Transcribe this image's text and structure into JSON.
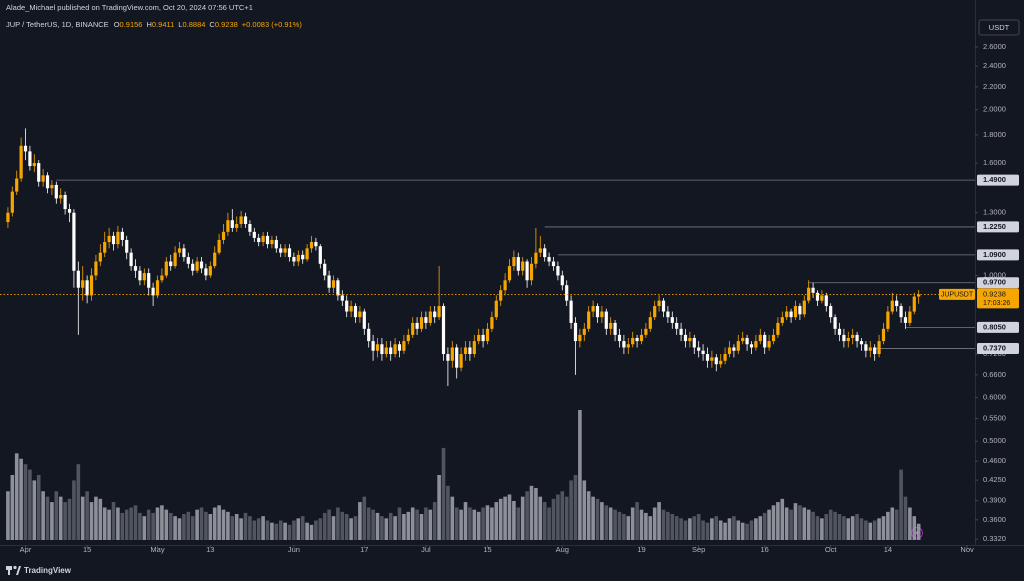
{
  "chart_data": {
    "type": "candlestick",
    "author_line": "Alade_Michael published on TradingView.com, Oct 20, 2024 07:56 UTC+1",
    "symbol": "JUP / TetherUS, 1D, BINANCE",
    "ohlc_keys": [
      "O",
      "H",
      "L",
      "C"
    ],
    "change": "+0.0083 (+0.91%)",
    "currency": "USDT",
    "ticker": "JUPUSDT",
    "countdown": "17:03:26",
    "brand": "TradingView",
    "log_scale": true,
    "grid": false,
    "colors": {
      "up": "#f7a600",
      "down": "#ffffff",
      "volume_up": "#a3a6ad",
      "volume_down": "#5d606b",
      "level": "#787b86",
      "background": "#131722"
    },
    "open": [
      1.25,
      1.3,
      1.42,
      1.5,
      1.72,
      1.68,
      1.58,
      1.6,
      1.48,
      1.52,
      1.44,
      1.46,
      1.38,
      1.4,
      1.32,
      1.3,
      1.02,
      0.95,
      0.98,
      0.92,
      1.0,
      1.06,
      1.1,
      1.15,
      1.18,
      1.14,
      1.2,
      1.16,
      1.1,
      1.04,
      1.02,
      0.98,
      1.01,
      0.95,
      0.92,
      0.98,
      1.0,
      1.06,
      1.04,
      1.1,
      1.12,
      1.08,
      1.05,
      1.02,
      1.06,
      1.03,
      1.0,
      1.04,
      1.1,
      1.16,
      1.2,
      1.26,
      1.22,
      1.24,
      1.28,
      1.24,
      1.2,
      1.17,
      1.15,
      1.18,
      1.14,
      1.16,
      1.12,
      1.1,
      1.12,
      1.08,
      1.06,
      1.09,
      1.07,
      1.12,
      1.15,
      1.13,
      1.05,
      1.0,
      0.95,
      0.98,
      0.92,
      0.9,
      0.86,
      0.88,
      0.84,
      0.86,
      0.8,
      0.76,
      0.73,
      0.75,
      0.72,
      0.74,
      0.72,
      0.75,
      0.73,
      0.76,
      0.78,
      0.82,
      0.8,
      0.84,
      0.82,
      0.86,
      0.84,
      0.88,
      0.72,
      0.7,
      0.74,
      0.68,
      0.72,
      0.74,
      0.72,
      0.76,
      0.78,
      0.76,
      0.8,
      0.84,
      0.9,
      0.94,
      0.98,
      1.04,
      1.08,
      1.02,
      1.06,
      0.98,
      1.05,
      1.1,
      1.12,
      1.08,
      1.06,
      1.04,
      1.0,
      0.96,
      0.9,
      0.82,
      0.76,
      0.78,
      0.8,
      0.86,
      0.88,
      0.84,
      0.86,
      0.8,
      0.82,
      0.78,
      0.76,
      0.74,
      0.75,
      0.77,
      0.76,
      0.78,
      0.8,
      0.84,
      0.88,
      0.9,
      0.86,
      0.84,
      0.82,
      0.8,
      0.78,
      0.76,
      0.77,
      0.74,
      0.73,
      0.72,
      0.7,
      0.71,
      0.69,
      0.7,
      0.72,
      0.74,
      0.73,
      0.76,
      0.77,
      0.75,
      0.74,
      0.76,
      0.78,
      0.74,
      0.76,
      0.78,
      0.82,
      0.84,
      0.86,
      0.84,
      0.88,
      0.85,
      0.9,
      0.95,
      0.93,
      0.9,
      0.92,
      0.88,
      0.84,
      0.8,
      0.78,
      0.76,
      0.77,
      0.78,
      0.76,
      0.75,
      0.73,
      0.74,
      0.72,
      0.76,
      0.8,
      0.86,
      0.9,
      0.88,
      0.84,
      0.82,
      0.86,
      0.9156
    ],
    "high": [
      1.33,
      1.45,
      1.55,
      1.78,
      1.85,
      1.72,
      1.66,
      1.62,
      1.56,
      1.54,
      1.49,
      1.48,
      1.44,
      1.42,
      1.35,
      1.32,
      1.06,
      1.04,
      1.0,
      1.03,
      1.09,
      1.14,
      1.2,
      1.22,
      1.2,
      1.23,
      1.22,
      1.18,
      1.12,
      1.07,
      1.04,
      1.03,
      1.03,
      0.97,
      1.0,
      1.03,
      1.08,
      1.09,
      1.13,
      1.15,
      1.14,
      1.1,
      1.07,
      1.08,
      1.08,
      1.05,
      1.06,
      1.13,
      1.19,
      1.24,
      1.3,
      1.32,
      1.28,
      1.31,
      1.3,
      1.26,
      1.22,
      1.19,
      1.2,
      1.2,
      1.18,
      1.18,
      1.14,
      1.14,
      1.14,
      1.1,
      1.11,
      1.11,
      1.14,
      1.18,
      1.17,
      1.14,
      1.07,
      1.02,
      1.0,
      0.99,
      0.94,
      0.92,
      0.9,
      0.89,
      0.88,
      0.87,
      0.82,
      0.78,
      0.77,
      0.77,
      0.76,
      0.76,
      0.77,
      0.76,
      0.78,
      0.8,
      0.84,
      0.84,
      0.86,
      0.86,
      0.88,
      0.88,
      1.04,
      0.89,
      0.74,
      0.76,
      0.75,
      0.74,
      0.76,
      0.76,
      0.78,
      0.8,
      0.8,
      0.82,
      0.86,
      0.92,
      0.96,
      1.01,
      1.07,
      1.11,
      1.1,
      1.08,
      1.07,
      1.08,
      1.22,
      1.18,
      1.14,
      1.1,
      1.08,
      1.06,
      1.02,
      0.98,
      0.92,
      0.84,
      0.8,
      0.82,
      0.88,
      0.9,
      0.89,
      0.88,
      0.87,
      0.84,
      0.83,
      0.8,
      0.78,
      0.77,
      0.79,
      0.78,
      0.8,
      0.82,
      0.86,
      0.9,
      0.92,
      0.91,
      0.88,
      0.86,
      0.84,
      0.82,
      0.8,
      0.79,
      0.78,
      0.76,
      0.75,
      0.74,
      0.73,
      0.72,
      0.72,
      0.74,
      0.76,
      0.75,
      0.78,
      0.79,
      0.78,
      0.76,
      0.78,
      0.8,
      0.79,
      0.78,
      0.8,
      0.84,
      0.86,
      0.88,
      0.87,
      0.9,
      0.89,
      0.92,
      0.98,
      0.97,
      0.94,
      0.94,
      0.93,
      0.89,
      0.85,
      0.82,
      0.8,
      0.79,
      0.8,
      0.79,
      0.77,
      0.76,
      0.76,
      0.75,
      0.78,
      0.82,
      0.88,
      0.93,
      0.92,
      0.89,
      0.86,
      0.88,
      0.93,
      0.9411
    ],
    "low": [
      1.22,
      1.28,
      1.4,
      1.48,
      1.62,
      1.55,
      1.54,
      1.45,
      1.45,
      1.41,
      1.4,
      1.35,
      1.35,
      1.29,
      1.25,
      0.95,
      0.78,
      0.9,
      0.89,
      0.9,
      0.98,
      1.04,
      1.08,
      1.12,
      1.11,
      1.12,
      1.13,
      1.07,
      1.02,
      0.99,
      0.96,
      0.96,
      0.92,
      0.88,
      0.91,
      0.97,
      0.99,
      1.02,
      1.03,
      1.08,
      1.06,
      1.03,
      1.0,
      1.01,
      1.01,
      0.98,
      0.99,
      1.03,
      1.09,
      1.14,
      1.18,
      1.2,
      1.2,
      1.22,
      1.22,
      1.18,
      1.15,
      1.13,
      1.13,
      1.12,
      1.12,
      1.1,
      1.08,
      1.08,
      1.06,
      1.04,
      1.04,
      1.05,
      1.06,
      1.1,
      1.11,
      1.03,
      0.98,
      0.93,
      0.93,
      0.9,
      0.88,
      0.84,
      0.84,
      0.82,
      0.82,
      0.78,
      0.74,
      0.7,
      0.71,
      0.7,
      0.71,
      0.7,
      0.71,
      0.71,
      0.72,
      0.75,
      0.77,
      0.78,
      0.79,
      0.8,
      0.81,
      0.82,
      0.83,
      0.7,
      0.63,
      0.68,
      0.65,
      0.67,
      0.7,
      0.7,
      0.71,
      0.75,
      0.74,
      0.75,
      0.79,
      0.83,
      0.88,
      0.92,
      0.97,
      1.02,
      1.0,
      1.0,
      0.95,
      0.96,
      1.03,
      1.08,
      1.06,
      1.04,
      1.02,
      0.98,
      0.94,
      0.88,
      0.8,
      0.66,
      0.74,
      0.76,
      0.79,
      0.84,
      0.82,
      0.82,
      0.78,
      0.78,
      0.76,
      0.74,
      0.72,
      0.72,
      0.74,
      0.74,
      0.75,
      0.77,
      0.79,
      0.83,
      0.86,
      0.84,
      0.82,
      0.8,
      0.78,
      0.76,
      0.74,
      0.74,
      0.72,
      0.71,
      0.7,
      0.68,
      0.68,
      0.67,
      0.68,
      0.69,
      0.71,
      0.71,
      0.72,
      0.75,
      0.73,
      0.72,
      0.73,
      0.75,
      0.72,
      0.73,
      0.75,
      0.77,
      0.81,
      0.83,
      0.82,
      0.83,
      0.83,
      0.84,
      0.89,
      0.91,
      0.88,
      0.89,
      0.86,
      0.82,
      0.78,
      0.76,
      0.74,
      0.74,
      0.75,
      0.74,
      0.73,
      0.71,
      0.71,
      0.7,
      0.71,
      0.75,
      0.79,
      0.85,
      0.86,
      0.82,
      0.8,
      0.81,
      0.85,
      0.8884
    ],
    "close": [
      1.3,
      1.42,
      1.5,
      1.72,
      1.68,
      1.58,
      1.6,
      1.48,
      1.52,
      1.44,
      1.46,
      1.38,
      1.4,
      1.32,
      1.3,
      1.02,
      0.95,
      0.98,
      0.92,
      1.0,
      1.06,
      1.1,
      1.15,
      1.18,
      1.14,
      1.2,
      1.16,
      1.1,
      1.04,
      1.02,
      0.98,
      1.01,
      0.95,
      0.92,
      0.98,
      1.0,
      1.06,
      1.04,
      1.1,
      1.12,
      1.08,
      1.05,
      1.02,
      1.06,
      1.03,
      1.0,
      1.04,
      1.1,
      1.16,
      1.2,
      1.26,
      1.22,
      1.24,
      1.28,
      1.24,
      1.2,
      1.17,
      1.15,
      1.18,
      1.14,
      1.16,
      1.12,
      1.1,
      1.12,
      1.08,
      1.06,
      1.09,
      1.07,
      1.12,
      1.15,
      1.13,
      1.05,
      1.0,
      0.95,
      0.98,
      0.92,
      0.9,
      0.86,
      0.88,
      0.84,
      0.86,
      0.8,
      0.76,
      0.73,
      0.75,
      0.72,
      0.74,
      0.72,
      0.75,
      0.73,
      0.76,
      0.78,
      0.82,
      0.8,
      0.84,
      0.82,
      0.86,
      0.84,
      0.88,
      0.72,
      0.7,
      0.74,
      0.68,
      0.72,
      0.74,
      0.72,
      0.76,
      0.78,
      0.76,
      0.8,
      0.84,
      0.9,
      0.94,
      0.98,
      1.04,
      1.08,
      1.02,
      1.06,
      0.98,
      1.05,
      1.1,
      1.12,
      1.08,
      1.06,
      1.04,
      1.0,
      0.96,
      0.9,
      0.82,
      0.76,
      0.78,
      0.8,
      0.86,
      0.88,
      0.84,
      0.86,
      0.8,
      0.82,
      0.78,
      0.76,
      0.74,
      0.75,
      0.77,
      0.76,
      0.78,
      0.8,
      0.84,
      0.88,
      0.9,
      0.86,
      0.84,
      0.82,
      0.8,
      0.78,
      0.76,
      0.77,
      0.74,
      0.73,
      0.72,
      0.7,
      0.71,
      0.69,
      0.7,
      0.72,
      0.74,
      0.73,
      0.76,
      0.77,
      0.75,
      0.74,
      0.76,
      0.78,
      0.74,
      0.76,
      0.78,
      0.82,
      0.84,
      0.86,
      0.84,
      0.88,
      0.85,
      0.9,
      0.95,
      0.93,
      0.9,
      0.92,
      0.88,
      0.84,
      0.8,
      0.78,
      0.76,
      0.77,
      0.78,
      0.76,
      0.75,
      0.73,
      0.74,
      0.72,
      0.76,
      0.8,
      0.86,
      0.9,
      0.88,
      0.84,
      0.82,
      0.86,
      0.9156,
      0.9238
    ],
    "volume": [
      45,
      60,
      80,
      75,
      70,
      65,
      55,
      60,
      45,
      40,
      35,
      45,
      40,
      35,
      38,
      55,
      70,
      40,
      45,
      35,
      40,
      38,
      30,
      28,
      35,
      30,
      25,
      28,
      30,
      32,
      25,
      22,
      28,
      25,
      30,
      32,
      28,
      25,
      22,
      20,
      24,
      26,
      22,
      28,
      30,
      26,
      24,
      30,
      32,
      28,
      26,
      22,
      24,
      20,
      25,
      22,
      18,
      20,
      22,
      18,
      16,
      15,
      18,
      16,
      14,
      18,
      20,
      22,
      16,
      14,
      18,
      20,
      25,
      28,
      22,
      30,
      26,
      24,
      20,
      22,
      35,
      40,
      30,
      28,
      25,
      22,
      20,
      25,
      22,
      30,
      24,
      26,
      30,
      28,
      24,
      30,
      28,
      35,
      60,
      85,
      50,
      40,
      30,
      28,
      35,
      30,
      28,
      26,
      30,
      32,
      30,
      35,
      38,
      40,
      42,
      36,
      30,
      40,
      45,
      50,
      48,
      40,
      35,
      30,
      38,
      42,
      45,
      40,
      55,
      60,
      120,
      55,
      45,
      40,
      38,
      35,
      32,
      30,
      28,
      26,
      24,
      22,
      30,
      35,
      28,
      25,
      22,
      30,
      35,
      28,
      26,
      24,
      22,
      20,
      18,
      20,
      22,
      24,
      18,
      16,
      20,
      22,
      18,
      16,
      20,
      22,
      18,
      16,
      15,
      18,
      20,
      22,
      25,
      28,
      32,
      35,
      38,
      30,
      28,
      34,
      32,
      30,
      28,
      26,
      22,
      20,
      24,
      28,
      26,
      24,
      22,
      20,
      22,
      24,
      20,
      18,
      16,
      18,
      20,
      22,
      26,
      30,
      28,
      65,
      40,
      30,
      22,
      15
    ],
    "xlim": [
      -1.8,
      219.8
    ],
    "xticks": [
      {
        "value": 4,
        "label": "Apr"
      },
      {
        "value": 18,
        "label": "15"
      },
      {
        "value": 34,
        "label": "May"
      },
      {
        "value": 46,
        "label": "13"
      },
      {
        "value": 65,
        "label": "Jun"
      },
      {
        "value": 81,
        "label": "17"
      },
      {
        "value": 95,
        "label": "Jul"
      },
      {
        "value": 109,
        "label": "15"
      },
      {
        "value": 126,
        "label": "Aug"
      },
      {
        "value": 144,
        "label": "19"
      },
      {
        "value": 157,
        "label": "Sep"
      },
      {
        "value": 172,
        "label": "16"
      },
      {
        "value": 187,
        "label": "Oct"
      },
      {
        "value": 200,
        "label": "14"
      },
      {
        "value": 218,
        "label": "Nov"
      }
    ],
    "ylim": [
      0.324,
      2.91
    ],
    "yticks": [
      {
        "value": 2.6,
        "label": "2.6000"
      },
      {
        "value": 2.4,
        "label": "2.4000"
      },
      {
        "value": 2.2,
        "label": "2.2000"
      },
      {
        "value": 2.0,
        "label": "2.0000"
      },
      {
        "value": 1.8,
        "label": "1.8000"
      },
      {
        "value": 1.6,
        "label": "1.6000"
      },
      {
        "value": 1.3,
        "label": "1.3000"
      },
      {
        "value": 1.0,
        "label": "1.0000"
      },
      {
        "value": 0.72,
        "label": "0.7200"
      },
      {
        "value": 0.66,
        "label": "0.6600"
      },
      {
        "value": 0.6,
        "label": "0.6000"
      },
      {
        "value": 0.55,
        "label": "0.5500"
      },
      {
        "value": 0.5,
        "label": "0.5000"
      },
      {
        "value": 0.46,
        "label": "0.4600"
      },
      {
        "value": 0.425,
        "label": "0.4250"
      },
      {
        "value": 0.39,
        "label": "0.3900"
      },
      {
        "value": 0.36,
        "label": "0.3600"
      },
      {
        "value": 0.332,
        "label": "0.3320"
      }
    ],
    "levels": [
      {
        "value": 1.49,
        "label": "1.4900"
      },
      {
        "value": 1.225,
        "label": "1.2250"
      },
      {
        "value": 1.09,
        "label": "1.0900"
      },
      {
        "value": 0.97,
        "label": "0.9700"
      },
      {
        "value": 0.805,
        "label": "0.8050"
      },
      {
        "value": 0.737,
        "label": "0.7370"
      }
    ]
  }
}
